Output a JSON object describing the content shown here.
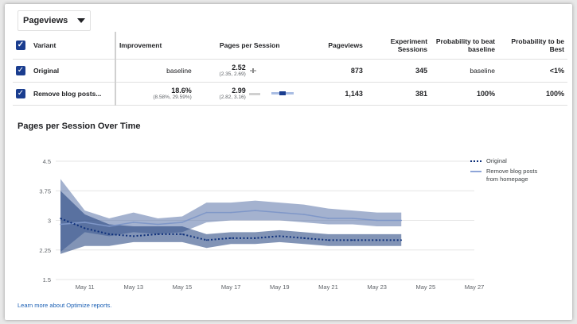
{
  "metric_selector": {
    "label": "Pageviews",
    "icon": "chevron-down-icon"
  },
  "table": {
    "headers": {
      "variant": "Variant",
      "improvement": "Improvement",
      "pages_per_session": "Pages per Session",
      "pageviews": "Pageviews",
      "experiment_sessions": "Experiment Sessions",
      "prob_beat_baseline": "Probability to beat baseline",
      "prob_best": "Probability to be Best"
    },
    "rows": [
      {
        "variant": "Original",
        "improvement": "baseline",
        "improvement_range": "",
        "pps": "2.52",
        "pps_range": "(2.35, 2.69)",
        "pageviews": "873",
        "sessions": "345",
        "prob_beat_baseline": "baseline",
        "prob_best": "<1%"
      },
      {
        "variant": "Remove blog posts...",
        "improvement": "18.6%",
        "improvement_range": "(8.58%, 29.59%)",
        "pps": "2.99",
        "pps_range": "(2.82, 3.16)",
        "pageviews": "1,143",
        "sessions": "381",
        "prob_beat_baseline": "100%",
        "prob_best": "100%"
      }
    ]
  },
  "chart_title": "Pages per Session Over Time",
  "learn_more": "Learn more about Optimize reports.",
  "colors": {
    "original": "#0d2f7a",
    "original_band": "#1c3d7a",
    "variant": "#7f97c8",
    "variant_band": "#5a73a8"
  },
  "chart_data": {
    "type": "line",
    "x": [
      "May 10",
      "May 11",
      "May 12",
      "May 13",
      "May 14",
      "May 15",
      "May 16",
      "May 17",
      "May 18",
      "May 19",
      "May 20",
      "May 21",
      "May 22",
      "May 23",
      "May 24"
    ],
    "x_tick_labels": [
      "May 11",
      "May 13",
      "May 15",
      "May 17",
      "May 19",
      "May 21",
      "May 23",
      "May 25",
      "May 27"
    ],
    "x_range": [
      "May 10",
      "May 27"
    ],
    "ylim": [
      1.5,
      4.5
    ],
    "y_ticks": [
      "1.5",
      "2.25",
      "3",
      "3.75",
      "4.5"
    ],
    "grid": true,
    "legend_position": "right",
    "series": [
      {
        "name": "Original",
        "style": "dotted",
        "values": [
          3.05,
          2.8,
          2.65,
          2.6,
          2.65,
          2.65,
          2.5,
          2.55,
          2.55,
          2.6,
          2.55,
          2.5,
          2.5,
          2.5,
          2.5
        ],
        "lower": [
          2.15,
          2.35,
          2.35,
          2.45,
          2.45,
          2.45,
          2.3,
          2.4,
          2.4,
          2.45,
          2.4,
          2.35,
          2.35,
          2.35,
          2.35
        ],
        "upper": [
          3.75,
          3.15,
          2.9,
          2.85,
          2.85,
          2.85,
          2.65,
          2.7,
          2.7,
          2.75,
          2.7,
          2.65,
          2.65,
          2.65,
          2.65
        ]
      },
      {
        "name": "Remove blog posts from homepage",
        "style": "solid",
        "values": [
          2.9,
          2.95,
          2.85,
          2.95,
          2.9,
          2.95,
          3.2,
          3.2,
          3.25,
          3.2,
          3.15,
          3.05,
          3.05,
          3.0,
          3.0
        ],
        "lower": [
          2.2,
          2.7,
          2.6,
          2.7,
          2.65,
          2.7,
          2.95,
          3.0,
          3.0,
          3.0,
          2.95,
          2.9,
          2.9,
          2.85,
          2.85
        ],
        "upper": [
          4.05,
          3.25,
          3.05,
          3.2,
          3.05,
          3.1,
          3.45,
          3.45,
          3.5,
          3.45,
          3.4,
          3.3,
          3.25,
          3.2,
          3.2
        ]
      }
    ]
  }
}
